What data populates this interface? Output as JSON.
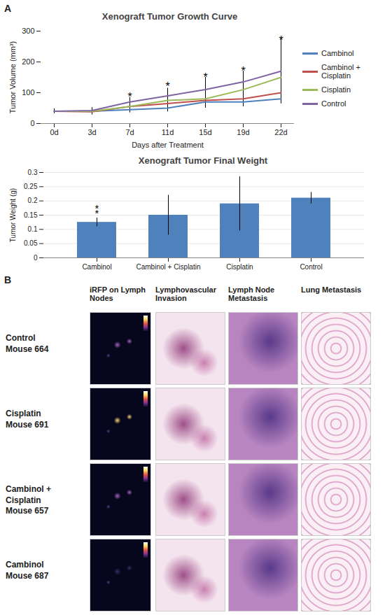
{
  "panel_labels": [
    "A",
    "B"
  ],
  "chart_data": [
    {
      "type": "line",
      "title": "Xenograft Tumor Growth Curve",
      "x_label": "Days after Treatment",
      "y_label": "Tumor Volume (mm³)",
      "categories": [
        "0d",
        "3d",
        "7d",
        "11d",
        "15d",
        "19d",
        "22d"
      ],
      "series": [
        {
          "name": "Cambinol",
          "color": "#4F81BD",
          "values": [
            40,
            40,
            45,
            50,
            70,
            70,
            80
          ],
          "errors": [
            5,
            8,
            10,
            12,
            18,
            15,
            15
          ]
        },
        {
          "name": "Cambinol + Cisplatin",
          "color": "#C0504D",
          "values": [
            40,
            38,
            55,
            65,
            75,
            80,
            100
          ],
          "errors": [
            5,
            10,
            12,
            15,
            25,
            25,
            25
          ]
        },
        {
          "name": "Cisplatin",
          "color": "#9BBB59",
          "values": [
            40,
            40,
            55,
            75,
            80,
            110,
            150
          ],
          "errors": [
            5,
            8,
            15,
            20,
            25,
            45,
            60
          ]
        },
        {
          "name": "Control",
          "color": "#8064A2",
          "values": [
            40,
            42,
            70,
            90,
            110,
            135,
            170
          ],
          "errors": [
            8,
            10,
            15,
            25,
            40,
            35,
            105
          ]
        }
      ],
      "ylim": [
        0,
        300
      ],
      "yticks": [
        0,
        100,
        200,
        300
      ],
      "grid": false,
      "legend": "right",
      "annotations": [
        {
          "x": "7d",
          "y": 85,
          "text": "*"
        },
        {
          "x": "11d",
          "y": 120,
          "text": "*"
        },
        {
          "x": "15d",
          "y": 150,
          "text": "*"
        },
        {
          "x": "19d",
          "y": 170,
          "text": "*"
        },
        {
          "x": "22d",
          "y": 270,
          "text": "*"
        }
      ]
    },
    {
      "type": "bar",
      "title": "Xenograft Tumor Final Weight",
      "y_label": "Tumor Weight (g)",
      "categories": [
        "Cambinol",
        "Cambinol + Cisplatin",
        "Cisplatin",
        "Control"
      ],
      "values": [
        0.125,
        0.15,
        0.19,
        0.21
      ],
      "errors": [
        0.015,
        0.07,
        0.095,
        0.02
      ],
      "color": "#4F81BD",
      "ylim": [
        0,
        0.3
      ],
      "yticks": [
        0,
        0.05,
        0.1,
        0.15,
        0.2,
        0.25,
        0.3
      ],
      "grid": true,
      "annotations": [
        {
          "x": "Cambinol",
          "y": 0.155,
          "text": "*"
        },
        {
          "x": "Cambinol",
          "y": 0.172,
          "text": "*"
        }
      ]
    }
  ],
  "image_grid": {
    "columns": [
      "iRFP on Lymph Nodes",
      "Lymphovascular Invasion",
      "Lymph Node Metastasis",
      "Lung Metastasis"
    ],
    "rows": [
      {
        "group": "Control",
        "mouse": "Mouse 664"
      },
      {
        "group": "Cisplatin",
        "mouse": "Mouse 691"
      },
      {
        "group": "Cambinol + Cisplatin",
        "mouse": "Mouse 657"
      },
      {
        "group": "Cambinol",
        "mouse": "Mouse 687"
      }
    ]
  }
}
